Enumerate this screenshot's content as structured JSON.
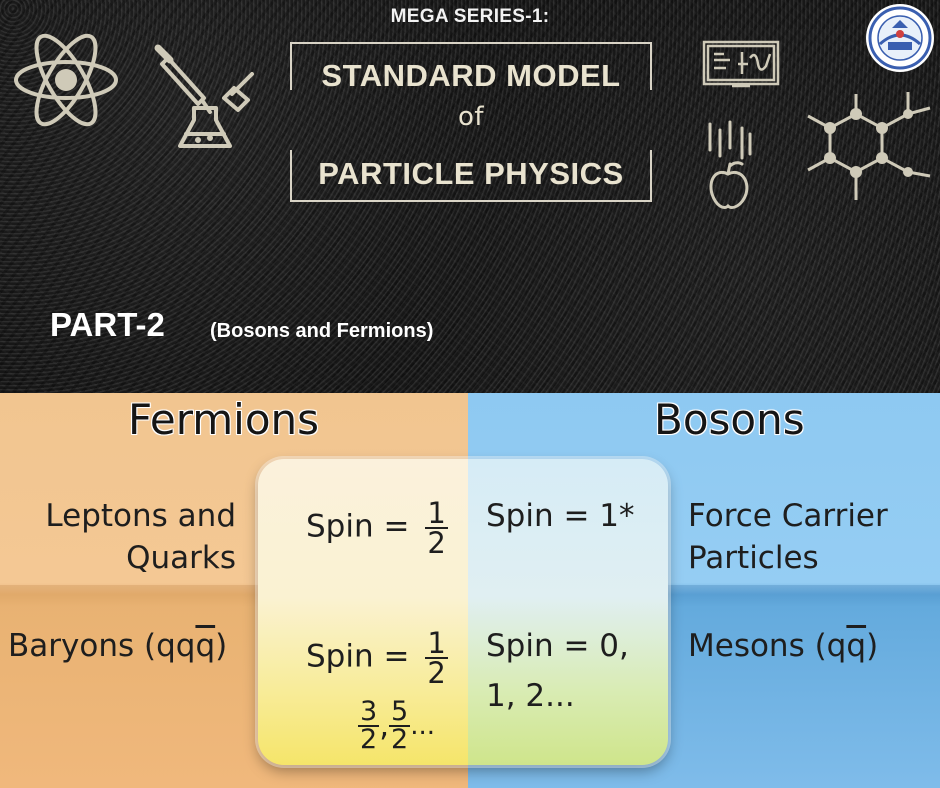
{
  "banner": {
    "series_title": "MEGA SERIES-1:",
    "title_line1": "STANDARD MODEL",
    "title_of": "of",
    "title_line2": "PARTICLE PHYSICS",
    "part": "PART-2",
    "part_subtitle": "(Bosons and Fermions)",
    "icons": [
      "atom-icon",
      "dropper-flask-icon",
      "blackboard-formula-icon",
      "falling-apple-icon",
      "molecule-hexagon-icon",
      "institution-logo"
    ]
  },
  "table": {
    "fermions_heading": "Fermions",
    "bosons_heading": "Bosons",
    "row1": {
      "left_line1": "Leptons and",
      "left_line2": "Quarks",
      "fermion_spin_prefix": "Spin = ",
      "fermion_spin_num": "1",
      "fermion_spin_den": "2",
      "boson_spin": "Spin = 1*",
      "right_line1": "Force Carrier",
      "right_line2": "Particles"
    },
    "row2": {
      "left_prefix": "Baryons (qq",
      "left_overline": "q",
      "left_suffix": ")",
      "fermion_spin_prefix": "Spin = ",
      "fermion_spin_num": "1",
      "fermion_spin_den": "2",
      "fermion_extra_num1": "3",
      "fermion_extra_den1": "2",
      "fermion_extra_sep": ",",
      "fermion_extra_num2": "5",
      "fermion_extra_den2": "2",
      "fermion_extra_suffix": "...",
      "boson_spin_line1": "Spin = 0,",
      "boson_spin_line2": "1, 2...",
      "right_prefix": "Mesons (q",
      "right_overline": "q",
      "right_suffix": ")"
    },
    "colors": {
      "fermion_col": "#f1c590",
      "boson_col": "#8ec9f2",
      "center_fermion": "#faf2d2",
      "center_boson": "#e0eff2"
    }
  }
}
